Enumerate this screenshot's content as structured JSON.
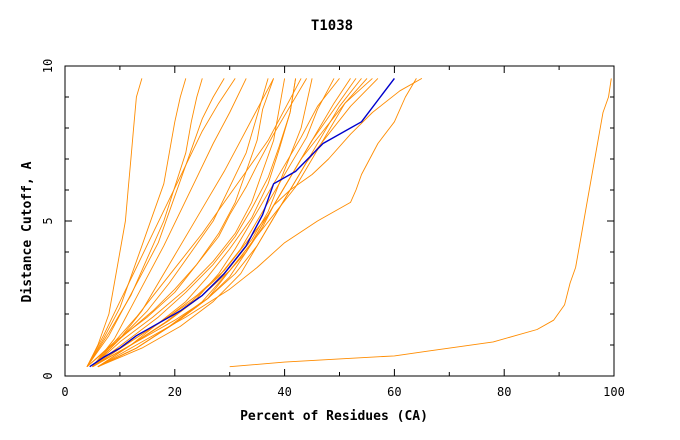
{
  "chart_data": {
    "type": "line",
    "title": "T1038",
    "xlabel": "Percent of Residues (CA)",
    "ylabel": "Distance Cutoff, A",
    "xlim": [
      0,
      100
    ],
    "ylim": [
      0,
      10
    ],
    "x_ticks": [
      "0",
      "20",
      "40",
      "60",
      "80",
      "100"
    ],
    "y_ticks": [
      "0",
      "5",
      "10"
    ],
    "grid": false,
    "colors": {
      "models": "#ff8c00",
      "highlight": "#0000cc",
      "axes": "#000000"
    },
    "series": [
      {
        "x": [
          4.5,
          7,
          10,
          13,
          17,
          21,
          25,
          29,
          33,
          36,
          38,
          42,
          47,
          54,
          60
        ],
        "y": [
          0.3,
          0.6,
          0.9,
          1.3,
          1.7,
          2.1,
          2.6,
          3.3,
          4.2,
          5.2,
          6.2,
          6.6,
          7.5,
          8.2,
          9.6
        ]
      },
      {
        "x": [
          30,
          40,
          50,
          60,
          66,
          72,
          78,
          82,
          86,
          89,
          91,
          92,
          93,
          94,
          95,
          96,
          97,
          98,
          99,
          99.5
        ],
        "y": [
          0.3,
          0.45,
          0.55,
          0.65,
          0.8,
          0.95,
          1.1,
          1.3,
          1.5,
          1.8,
          2.3,
          3.0,
          3.5,
          4.5,
          5.5,
          6.5,
          7.5,
          8.5,
          9.0,
          9.6
        ]
      },
      {
        "x": [
          4,
          6,
          8,
          9,
          10,
          11,
          11.5,
          12,
          12.5,
          13,
          14
        ],
        "y": [
          0.3,
          1.0,
          2.0,
          3.0,
          4.0,
          5.0,
          6.0,
          7.0,
          8.0,
          9.0,
          9.6
        ]
      },
      {
        "x": [
          5,
          12,
          20,
          26,
          30,
          33,
          36,
          38,
          41,
          45,
          48,
          52,
          56,
          61,
          65
        ],
        "y": [
          0.3,
          1.0,
          1.8,
          2.5,
          3.2,
          4.0,
          4.8,
          5.5,
          6.0,
          6.5,
          7.0,
          7.8,
          8.5,
          9.2,
          9.6
        ]
      },
      {
        "x": [
          6,
          13,
          22,
          30,
          35,
          40,
          46,
          52,
          53,
          54,
          57,
          60,
          62,
          64
        ],
        "y": [
          0.3,
          1.0,
          1.9,
          2.8,
          3.5,
          4.3,
          5.0,
          5.6,
          6.0,
          6.5,
          7.5,
          8.2,
          9.0,
          9.6
        ]
      },
      {
        "x": [
          4,
          8,
          12,
          16,
          20,
          24,
          28,
          30,
          33,
          35,
          38,
          41,
          44
        ],
        "y": [
          0.3,
          0.9,
          1.5,
          2.1,
          2.8,
          3.6,
          4.5,
          5.2,
          6.1,
          6.8,
          7.8,
          8.7,
          9.6
        ]
      },
      {
        "x": [
          4,
          9,
          15,
          20,
          24,
          28,
          31,
          33,
          35,
          36,
          38
        ],
        "y": [
          0.3,
          1.1,
          1.9,
          2.7,
          3.6,
          4.6,
          5.6,
          6.6,
          7.6,
          8.6,
          9.6
        ]
      },
      {
        "x": [
          5,
          9,
          12,
          15,
          18,
          21,
          24,
          27,
          30,
          33
        ],
        "y": [
          0.3,
          1.2,
          2.2,
          3.2,
          4.2,
          5.3,
          6.4,
          7.5,
          8.5,
          9.6
        ]
      },
      {
        "x": [
          4,
          7,
          10,
          13,
          16,
          19,
          22,
          25,
          28,
          31
        ],
        "y": [
          0.3,
          1.3,
          2.4,
          3.5,
          4.6,
          5.7,
          6.8,
          7.9,
          8.8,
          9.6
        ]
      },
      {
        "x": [
          4,
          8,
          12,
          15,
          18,
          20,
          22,
          23,
          24,
          25
        ],
        "y": [
          0.3,
          1.4,
          2.6,
          3.8,
          5.0,
          6.1,
          7.2,
          8.2,
          9.0,
          9.6
        ]
      },
      {
        "x": [
          5,
          10,
          14,
          17,
          20,
          23,
          26,
          29,
          32,
          35,
          38
        ],
        "y": [
          0.3,
          1.2,
          2.1,
          3.0,
          3.9,
          4.8,
          5.7,
          6.6,
          7.6,
          8.6,
          9.6
        ]
      },
      {
        "x": [
          4,
          8,
          11,
          14,
          17,
          19,
          21,
          23,
          25,
          27,
          29
        ],
        "y": [
          0.3,
          1.3,
          2.3,
          3.3,
          4.3,
          5.3,
          6.3,
          7.3,
          8.3,
          9.0,
          9.6
        ]
      },
      {
        "x": [
          5,
          9,
          13,
          17,
          21,
          25,
          29,
          33,
          37,
          40,
          43
        ],
        "y": [
          0.3,
          1.1,
          1.9,
          2.8,
          3.7,
          4.6,
          5.6,
          6.6,
          7.6,
          8.6,
          9.6
        ]
      },
      {
        "x": [
          4,
          7,
          10,
          12,
          14,
          16,
          18,
          19,
          20,
          21,
          22
        ],
        "y": [
          0.3,
          1.2,
          2.2,
          3.2,
          4.2,
          5.2,
          6.2,
          7.2,
          8.2,
          9.0,
          9.6
        ]
      },
      {
        "x": [
          5,
          10,
          15,
          19,
          23,
          27,
          30,
          33,
          35,
          37
        ],
        "y": [
          0.3,
          1.2,
          2.1,
          3.0,
          4.0,
          5.0,
          6.1,
          7.2,
          8.4,
          9.6
        ]
      },
      {
        "x": [
          6,
          12,
          17,
          22,
          26,
          30,
          34,
          37,
          39,
          41,
          42
        ],
        "y": [
          0.3,
          1.0,
          1.7,
          2.4,
          3.2,
          4.1,
          5.1,
          6.2,
          7.3,
          8.5,
          9.6
        ]
      },
      {
        "x": [
          5,
          11,
          17,
          23,
          28,
          32,
          35,
          38,
          41,
          44,
          46,
          49
        ],
        "y": [
          0.3,
          1.0,
          1.7,
          2.4,
          3.2,
          4.1,
          5.0,
          5.9,
          6.8,
          7.7,
          8.6,
          9.6
        ]
      },
      {
        "x": [
          5,
          12,
          18,
          24,
          28,
          31,
          34,
          37,
          40,
          43,
          46,
          50
        ],
        "y": [
          0.3,
          1.0,
          1.7,
          2.5,
          3.3,
          4.1,
          5.0,
          5.9,
          6.8,
          7.7,
          8.7,
          9.6
        ]
      },
      {
        "x": [
          6,
          13,
          19,
          25,
          29,
          33,
          36,
          39,
          42,
          45,
          49,
          53
        ],
        "y": [
          0.3,
          0.9,
          1.6,
          2.4,
          3.2,
          4.0,
          4.9,
          5.8,
          6.7,
          7.6,
          8.6,
          9.6
        ]
      },
      {
        "x": [
          5,
          11,
          18,
          24,
          29,
          33,
          37,
          40,
          43,
          47,
          51,
          55
        ],
        "y": [
          0.3,
          1.0,
          1.8,
          2.6,
          3.4,
          4.3,
          5.2,
          6.1,
          7.0,
          7.9,
          8.8,
          9.6
        ]
      },
      {
        "x": [
          6,
          13,
          20,
          26,
          31,
          35,
          38,
          41,
          44,
          48,
          52,
          57
        ],
        "y": [
          0.3,
          0.9,
          1.7,
          2.5,
          3.3,
          4.2,
          5.1,
          6.0,
          6.9,
          7.8,
          8.7,
          9.6
        ]
      },
      {
        "x": [
          5,
          12,
          19,
          25,
          30,
          34,
          37,
          39,
          41,
          43,
          44,
          45
        ],
        "y": [
          0.3,
          1.0,
          1.8,
          2.6,
          3.5,
          4.4,
          5.3,
          6.2,
          7.1,
          8.0,
          8.8,
          9.6
        ]
      },
      {
        "x": [
          6,
          14,
          21,
          27,
          32,
          35,
          38,
          41,
          44,
          47,
          50,
          54
        ],
        "y": [
          0.3,
          0.9,
          1.6,
          2.4,
          3.3,
          4.2,
          5.1,
          6.0,
          6.9,
          7.8,
          8.7,
          9.6
        ]
      },
      {
        "x": [
          5,
          11,
          17,
          22,
          27,
          31,
          34,
          37,
          39,
          41,
          42
        ],
        "y": [
          0.3,
          1.1,
          1.9,
          2.7,
          3.6,
          4.5,
          5.4,
          6.4,
          7.4,
          8.5,
          9.6
        ]
      },
      {
        "x": [
          6,
          13,
          20,
          26,
          30,
          34,
          37,
          40,
          43,
          46,
          49,
          52
        ],
        "y": [
          0.3,
          0.9,
          1.7,
          2.5,
          3.4,
          4.3,
          5.2,
          6.1,
          7.0,
          7.9,
          8.8,
          9.6
        ]
      },
      {
        "x": [
          5,
          10,
          16,
          22,
          27,
          31,
          34,
          36,
          38,
          39,
          40
        ],
        "y": [
          0.3,
          1.1,
          1.9,
          2.8,
          3.7,
          4.6,
          5.6,
          6.6,
          7.6,
          8.6,
          9.6
        ]
      },
      {
        "x": [
          6,
          12,
          19,
          25,
          30,
          34,
          38,
          42,
          45,
          48,
          51,
          56
        ],
        "y": [
          0.3,
          1.0,
          1.8,
          2.6,
          3.4,
          4.3,
          5.2,
          6.1,
          7.0,
          7.9,
          8.8,
          9.6
        ]
      }
    ]
  }
}
